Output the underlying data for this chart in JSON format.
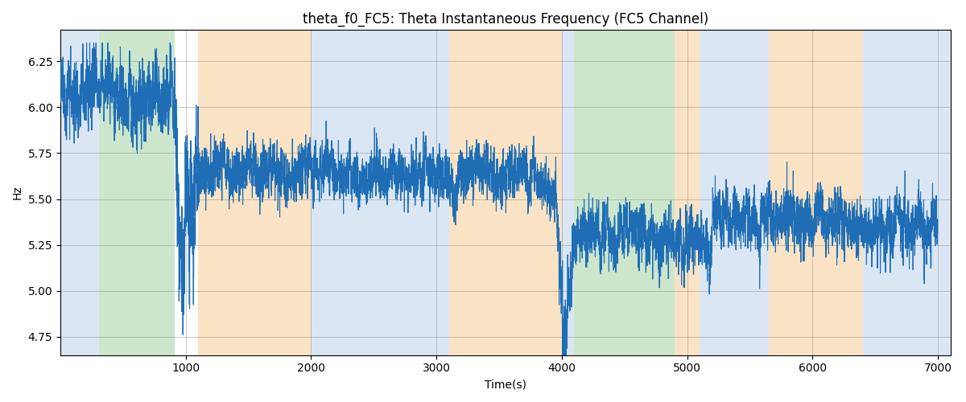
{
  "title": "theta_f0_FC5: Theta Instantaneous Frequency (FC5 Channel)",
  "xlabel": "Time(s)",
  "ylabel": "Hz",
  "xlim": [
    0,
    7100
  ],
  "ylim": [
    4.65,
    6.42
  ],
  "line_color": "#1f6eb5",
  "line_width": 0.8,
  "bg_regions": [
    {
      "xmin": 0,
      "xmax": 310,
      "color": "#aec8e8",
      "alpha": 0.45
    },
    {
      "xmin": 310,
      "xmax": 910,
      "color": "#8ec98e",
      "alpha": 0.45
    },
    {
      "xmin": 1100,
      "xmax": 2000,
      "color": "#f5c98a",
      "alpha": 0.5
    },
    {
      "xmin": 2000,
      "xmax": 3100,
      "color": "#aec8e8",
      "alpha": 0.45
    },
    {
      "xmin": 3100,
      "xmax": 4000,
      "color": "#f5c98a",
      "alpha": 0.5
    },
    {
      "xmin": 4000,
      "xmax": 4100,
      "color": "#aec8e8",
      "alpha": 0.45
    },
    {
      "xmin": 4100,
      "xmax": 4900,
      "color": "#8ec98e",
      "alpha": 0.45
    },
    {
      "xmin": 4900,
      "xmax": 5100,
      "color": "#f5c98a",
      "alpha": 0.5
    },
    {
      "xmin": 5100,
      "xmax": 5650,
      "color": "#aec8e8",
      "alpha": 0.45
    },
    {
      "xmin": 5650,
      "xmax": 6400,
      "color": "#f5c98a",
      "alpha": 0.5
    },
    {
      "xmin": 6400,
      "xmax": 7100,
      "color": "#aec8e8",
      "alpha": 0.45
    }
  ],
  "yticks": [
    4.75,
    5.0,
    5.25,
    5.5,
    5.75,
    6.0,
    6.25
  ],
  "xticks": [
    1000,
    2000,
    3000,
    4000,
    5000,
    6000,
    7000
  ],
  "title_fontsize": 12,
  "axis_label_fontsize": 10,
  "seed": 42
}
